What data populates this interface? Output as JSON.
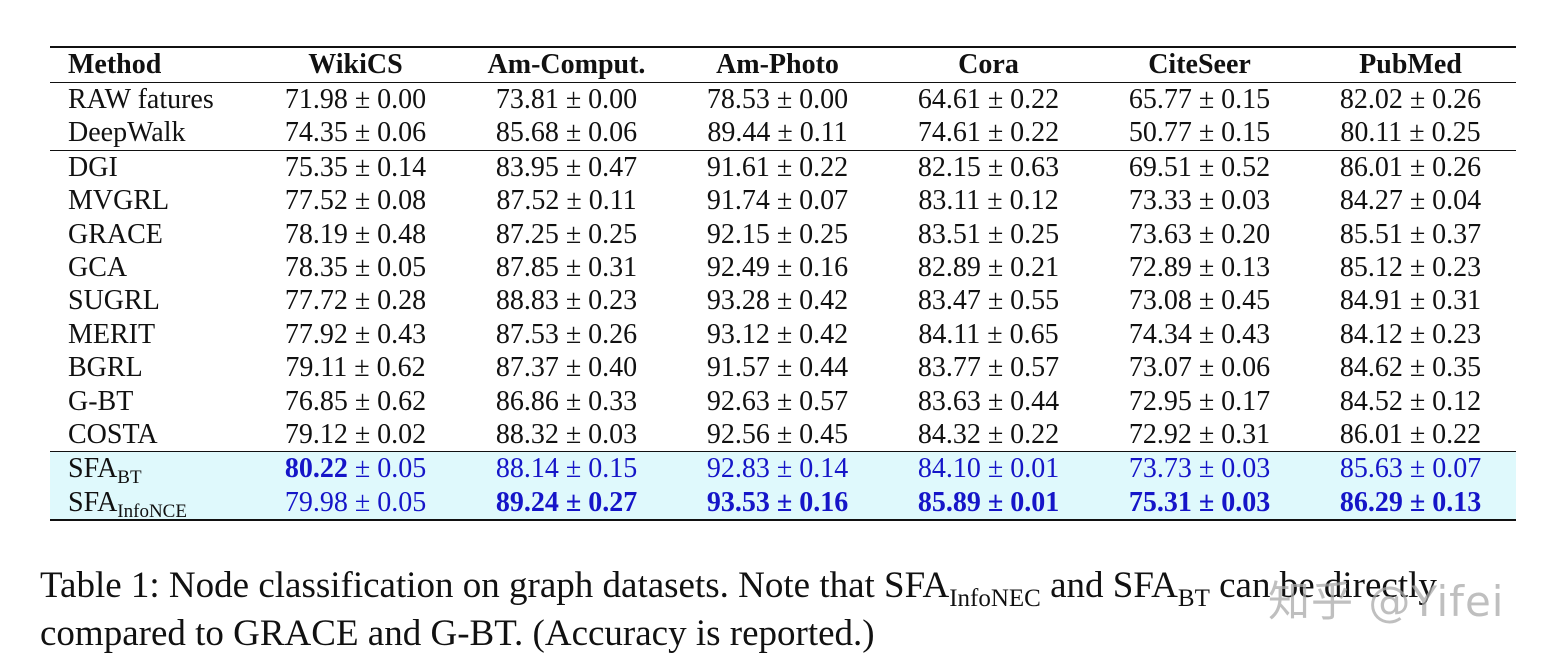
{
  "table": {
    "headers": [
      "Method",
      "WikiCS",
      "Am-Comput.",
      "Am-Photo",
      "Cora",
      "CiteSeer",
      "PubMed"
    ],
    "rows": [
      {
        "method": "RAW fatures",
        "values": [
          "71.98 ± 0.00",
          "73.81 ± 0.00",
          "78.53 ± 0.00",
          "64.61 ± 0.22",
          "65.77 ± 0.15",
          "82.02 ± 0.26"
        ]
      },
      {
        "method": "DeepWalk",
        "values": [
          "74.35 ± 0.06",
          "85.68 ± 0.06",
          "89.44 ± 0.11",
          "74.61 ± 0.22",
          "50.77 ± 0.15",
          "80.11 ± 0.25"
        ]
      },
      {
        "method": "DGI",
        "values": [
          "75.35 ± 0.14",
          "83.95 ± 0.47",
          "91.61 ± 0.22",
          "82.15 ± 0.63",
          "69.51 ± 0.52",
          "86.01 ± 0.26"
        ]
      },
      {
        "method": "MVGRL",
        "values": [
          "77.52 ± 0.08",
          "87.52 ± 0.11",
          "91.74 ± 0.07",
          "83.11 ± 0.12",
          "73.33 ± 0.03",
          "84.27 ± 0.04"
        ]
      },
      {
        "method": "GRACE",
        "values": [
          "78.19 ± 0.48",
          "87.25 ± 0.25",
          "92.15 ± 0.25",
          "83.51 ± 0.25",
          "73.63 ± 0.20",
          "85.51 ± 0.37"
        ]
      },
      {
        "method": "GCA",
        "values": [
          "78.35 ± 0.05",
          "87.85 ± 0.31",
          "92.49 ± 0.16",
          "82.89 ± 0.21",
          "72.89 ± 0.13",
          "85.12 ± 0.23"
        ]
      },
      {
        "method": "SUGRL",
        "values": [
          "77.72 ± 0.28",
          "88.83 ± 0.23",
          "93.28 ± 0.42",
          "83.47 ± 0.55",
          "73.08 ± 0.45",
          "84.91 ± 0.31"
        ]
      },
      {
        "method": "MERIT",
        "values": [
          "77.92 ± 0.43",
          "87.53 ± 0.26",
          "93.12 ± 0.42",
          "84.11 ± 0.65",
          "74.34 ± 0.43",
          "84.12 ± 0.23"
        ]
      },
      {
        "method": "BGRL",
        "values": [
          "79.11 ± 0.62",
          "87.37 ± 0.40",
          "91.57 ± 0.44",
          "83.77 ± 0.57",
          "73.07 ± 0.06",
          "84.62 ± 0.35"
        ]
      },
      {
        "method": "G-BT",
        "values": [
          "76.85 ± 0.62",
          "86.86 ± 0.33",
          "92.63 ± 0.57",
          "83.63 ± 0.44",
          "72.95 ± 0.17",
          "84.52 ± 0.12"
        ]
      },
      {
        "method": "COSTA",
        "values": [
          "79.12 ± 0.02",
          "88.32 ± 0.03",
          "92.56 ± 0.45",
          "84.32 ± 0.22",
          "72.92 ± 0.31",
          "86.01 ± 0.22"
        ]
      }
    ],
    "highlight_rows": [
      {
        "method_base": "SFA",
        "method_sub": "BT",
        "cells": [
          {
            "mean": "80.22",
            "pm": " ± ",
            "std": "0.05",
            "bold_mean": true,
            "bold_std": false
          },
          {
            "mean": "88.14",
            "pm": " ± ",
            "std": "0.15",
            "bold_mean": false,
            "bold_std": false
          },
          {
            "mean": "92.83",
            "pm": " ± ",
            "std": "0.14",
            "bold_mean": false,
            "bold_std": false
          },
          {
            "mean": "84.10",
            "pm": " ± ",
            "std": "0.01",
            "bold_mean": false,
            "bold_std": false
          },
          {
            "mean": "73.73",
            "pm": " ± ",
            "std": "0.03",
            "bold_mean": false,
            "bold_std": false
          },
          {
            "mean": "85.63",
            "pm": " ± ",
            "std": "0.07",
            "bold_mean": false,
            "bold_std": false
          }
        ]
      },
      {
        "method_base": "SFA",
        "method_sub": "InfoNCE",
        "cells": [
          {
            "mean": "79.98",
            "pm": " ± ",
            "std": "0.05",
            "bold_mean": false,
            "bold_std": false
          },
          {
            "mean": "89.24",
            "pm": " ± ",
            "std": "0.27",
            "bold_mean": true,
            "bold_std": true
          },
          {
            "mean": "93.53",
            "pm": " ± ",
            "std": "0.16",
            "bold_mean": true,
            "bold_std": true
          },
          {
            "mean": "85.89",
            "pm": " ± ",
            "std": "0.01",
            "bold_mean": true,
            "bold_std": true
          },
          {
            "mean": "75.31",
            "pm": " ± ",
            "std": "0.03",
            "bold_mean": true,
            "bold_std": true
          },
          {
            "mean": "86.29",
            "pm": " ± ",
            "std": "0.13",
            "bold_mean": true,
            "bold_std": true
          }
        ]
      }
    ],
    "colors": {
      "highlight_bg": "#dff9fc",
      "highlight_text": "#1515c8",
      "text": "#111111"
    }
  },
  "caption": {
    "part1": "Table 1: Node classification on graph datasets. Note that SFA",
    "sub1": "InfoNEC",
    "part2": " and SFA",
    "sub2": "BT",
    "part3": " can be directly compared to GRACE and G-BT. (Accuracy is reported.)"
  },
  "watermark": "知乎 @Yifei"
}
